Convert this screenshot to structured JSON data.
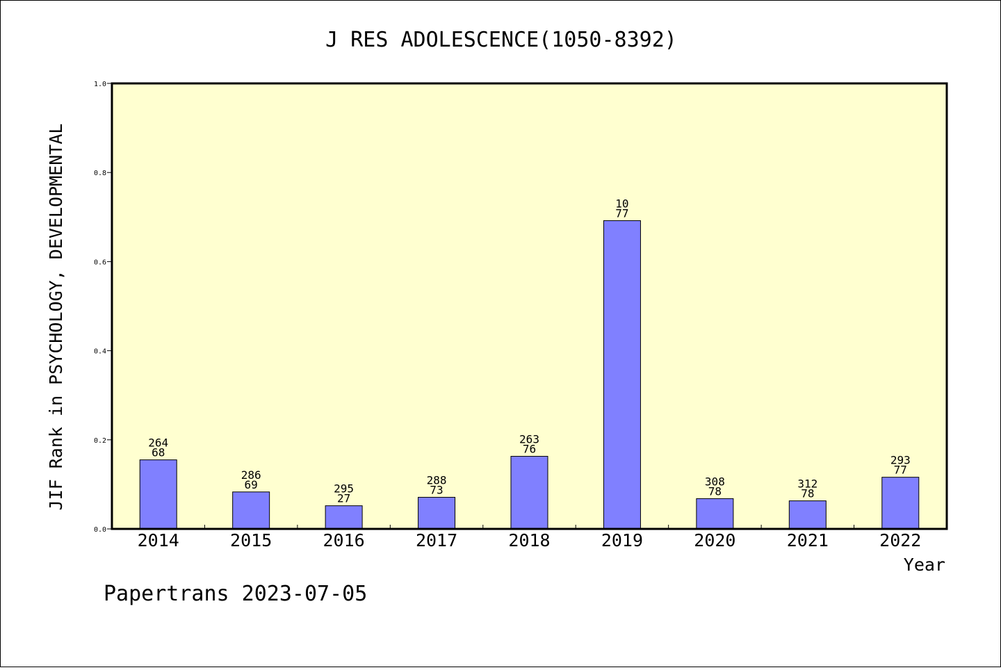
{
  "chart_data": {
    "type": "bar",
    "title": "J RES ADOLESCENCE(1050-8392)",
    "xlabel": "Year",
    "ylabel": "JIF Rank in PSYCHOLOGY, DEVELOPMENTAL",
    "ylim": [
      0,
      1.0
    ],
    "yticks": [
      "0.0",
      "0.2",
      "0.4",
      "0.6",
      "0.8",
      "1.0"
    ],
    "categories": [
      "2014",
      "2015",
      "2016",
      "2017",
      "2018",
      "2019",
      "2020",
      "2021",
      "2022"
    ],
    "values": [
      0.155,
      0.083,
      0.052,
      0.071,
      0.163,
      0.692,
      0.068,
      0.063,
      0.116
    ],
    "label_top": [
      "264",
      "286",
      "295",
      "288",
      "263",
      "10",
      "308",
      "312",
      "293"
    ],
    "label_bottom": [
      "68",
      "69",
      "27",
      "73",
      "76",
      "77",
      "78",
      "78",
      "77"
    ],
    "grid": false,
    "colors": {
      "plot_background": "#ffffd0",
      "bar_fill": "#8080ff",
      "bar_stroke": "#000000"
    }
  },
  "footer": "Papertrans 2023-07-05"
}
